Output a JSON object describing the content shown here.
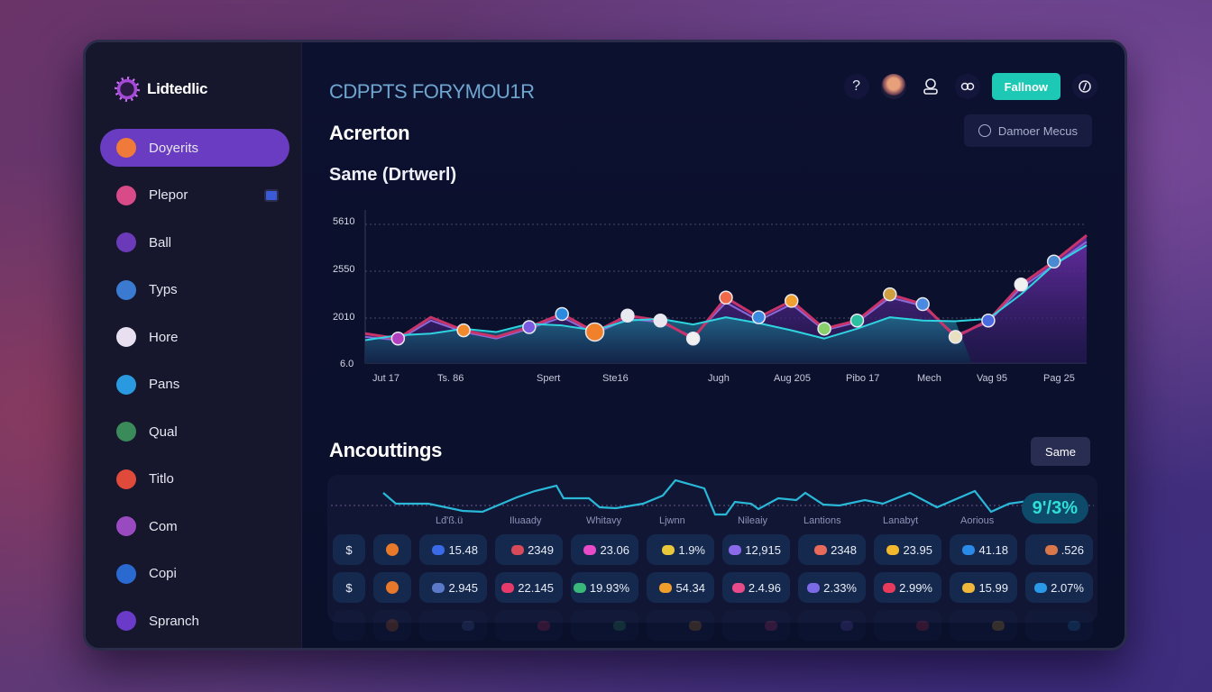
{
  "brand": {
    "name": "Lidtedlic"
  },
  "sidebar": {
    "items": [
      {
        "label": "Doyerits",
        "icon": "dots-icon",
        "color": "#f07a3a",
        "active": true
      },
      {
        "label": "Plepor",
        "icon": "gift-icon",
        "color": "#d84a88",
        "badge": true
      },
      {
        "label": "Ball",
        "icon": "p-icon",
        "color": "#6a3ab8"
      },
      {
        "label": "Typs",
        "icon": "flower-icon",
        "color": "#3a7ad0"
      },
      {
        "label": "Hore",
        "icon": "m-icon",
        "color": "#e8e0f0"
      },
      {
        "label": "Pans",
        "icon": "bird-icon",
        "color": "#2a9ae0"
      },
      {
        "label": "Qual",
        "icon": "grid-icon",
        "color": "#3a8a5a"
      },
      {
        "label": "Titlo",
        "icon": "person-icon",
        "color": "#e04a3a"
      },
      {
        "label": "Com",
        "icon": "chat-icon",
        "color": "#9a4ac0"
      },
      {
        "label": "Copi",
        "icon": "download-icon",
        "color": "#2a6ad0"
      },
      {
        "label": "Spranch",
        "icon": "h-icon",
        "color": "#6a3ac8"
      }
    ]
  },
  "header": {
    "app_title": "CDPPTS FORYMOU1R",
    "help_icon": "?",
    "follow_label": "Fallnow",
    "danger_menu_label": "Damoer Mecus"
  },
  "main": {
    "section_title": "Acrerton",
    "chart_title": "Same (Drtwerl)",
    "accounts_title": "Ancouttings",
    "same_button": "Same",
    "accounts_percent": "9'/3%",
    "accounts_labels": [
      "Lđ'ß.ü",
      "Iluaady",
      "Whitavy",
      "Ljwnn",
      "Nileaiy",
      "Lantions",
      "Lanabyt",
      "Aorious"
    ]
  },
  "chart_data": {
    "type": "line",
    "title": "Same (Drtwerl)",
    "xlabel": "",
    "ylabel": "",
    "y_ticks": [
      "5610",
      "2550",
      "2010",
      "6.0"
    ],
    "x_ticks": [
      "Jut 17",
      "Ts. 86",
      "Spert",
      "Ste16",
      "Jugh",
      "Aug 205",
      "Pibo 17",
      "Mech",
      "Vag 95",
      "Pag 25"
    ],
    "grid": true,
    "series": [
      {
        "name": "cyan",
        "color": "#2ed4e0",
        "values": [
          1900,
          2050,
          2100,
          2250,
          2150,
          2400,
          2350,
          2200,
          2500,
          2550,
          2380,
          2600,
          2420,
          2200,
          1950,
          2250,
          2600,
          2500,
          2480,
          2550,
          3300,
          4200,
          4800
        ]
      },
      {
        "name": "magenta",
        "color": "#c8346a",
        "values": [
          2100,
          1950,
          2600,
          2200,
          2000,
          2300,
          2700,
          2150,
          2650,
          2500,
          1950,
          3200,
          2600,
          3100,
          2250,
          2500,
          3300,
          3000,
          2000,
          2500,
          3600,
          4300,
          5100
        ]
      },
      {
        "name": "violet",
        "color": "#8a6ad8",
        "values": [
          2000,
          1900,
          2500,
          2150,
          1950,
          2250,
          2600,
          2100,
          2550,
          2450,
          2000,
          3050,
          2500,
          3000,
          2200,
          2450,
          3200,
          2950,
          2050,
          2450,
          3500,
          4200,
          4900
        ]
      }
    ]
  },
  "table": {
    "rows": [
      {
        "currency": "$",
        "cells": [
          {
            "value": "15.48",
            "color": "#3a6ae8"
          },
          {
            "value": "2349",
            "color": "#d84a5a"
          },
          {
            "value": "23.06",
            "color": "#e84ac8"
          },
          {
            "value": "1.9%",
            "color": "#e8c83a"
          },
          {
            "value": "12,915",
            "color": "#8a6ae8"
          },
          {
            "value": "2348",
            "color": "#e86a5a"
          },
          {
            "value": "23.95",
            "color": "#f0b82a"
          },
          {
            "value": "41.18",
            "color": "#2a8ae8"
          },
          {
            "value": ".526",
            "color": "#d8784a"
          }
        ]
      },
      {
        "currency": "$",
        "cells": [
          {
            "value": "2.945",
            "color": "#5a7ac8"
          },
          {
            "value": "22.145",
            "color": "#e83a6a"
          },
          {
            "value": "19.93%",
            "color": "#3ab87a"
          },
          {
            "value": "54.34",
            "color": "#f0a02a"
          },
          {
            "value": "2.4.96",
            "color": "#e84a8a"
          },
          {
            "value": "2.33%",
            "color": "#7a6ae8"
          },
          {
            "value": "2.99%",
            "color": "#e83a5a"
          },
          {
            "value": "15.99",
            "color": "#f0b83a"
          },
          {
            "value": "2.07%",
            "color": "#2a9ae8"
          }
        ]
      }
    ]
  }
}
